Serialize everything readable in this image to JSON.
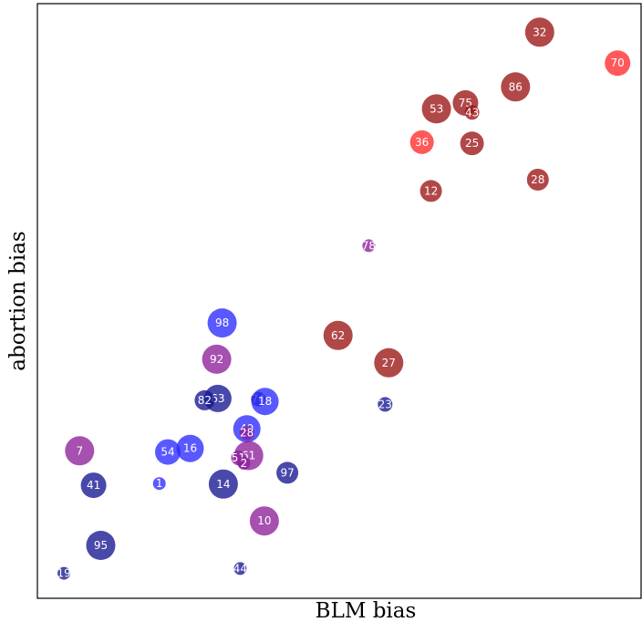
{
  "chart_data": {
    "type": "scatter",
    "title": "",
    "xlabel": "BLM bias",
    "ylabel": "abortion bias",
    "xlim": [
      0,
      100
    ],
    "ylim": [
      0,
      100
    ],
    "grid": false,
    "axis_ticks": false,
    "colors": {
      "blue": "#2a2aff",
      "navy": "#161692",
      "purple": "#8d1f9a",
      "darkred": "#9b1414",
      "red": "#ff2a2a"
    },
    "points": [
      {
        "label": "32",
        "x": 83.2,
        "y": 95.2,
        "size": 16,
        "color": "darkred"
      },
      {
        "label": "70",
        "x": 96.1,
        "y": 90.0,
        "size": 14,
        "color": "red"
      },
      {
        "label": "86",
        "x": 79.2,
        "y": 86.0,
        "size": 16,
        "color": "darkred"
      },
      {
        "label": "75",
        "x": 70.9,
        "y": 83.3,
        "size": 14,
        "color": "darkred"
      },
      {
        "label": "53",
        "x": 66.1,
        "y": 82.3,
        "size": 16,
        "color": "darkred"
      },
      {
        "label": "43",
        "x": 72.0,
        "y": 81.7,
        "size": 8,
        "color": "darkred"
      },
      {
        "label": "36",
        "x": 63.7,
        "y": 76.7,
        "size": 13,
        "color": "red"
      },
      {
        "label": "25",
        "x": 72.0,
        "y": 76.5,
        "size": 13,
        "color": "darkred"
      },
      {
        "label": "28",
        "x": 82.9,
        "y": 70.4,
        "size": 12,
        "color": "darkred"
      },
      {
        "label": "12",
        "x": 65.2,
        "y": 68.5,
        "size": 12,
        "color": "darkred"
      },
      {
        "label": "78",
        "x": 54.9,
        "y": 59.3,
        "size": 7,
        "color": "purple"
      },
      {
        "label": "98",
        "x": 30.6,
        "y": 46.3,
        "size": 16,
        "color": "blue"
      },
      {
        "label": "62",
        "x": 49.8,
        "y": 44.2,
        "size": 16,
        "color": "darkred"
      },
      {
        "label": "92",
        "x": 29.7,
        "y": 40.2,
        "size": 16,
        "color": "purple"
      },
      {
        "label": "27",
        "x": 58.2,
        "y": 39.6,
        "size": 16,
        "color": "darkred"
      },
      {
        "label": "63",
        "x": 29.9,
        "y": 33.6,
        "size": 15,
        "color": "navy"
      },
      {
        "label": "82",
        "x": 27.7,
        "y": 33.3,
        "size": 11,
        "color": "navy"
      },
      {
        "label": "74",
        "x": 36.6,
        "y": 33.5,
        "size": 8,
        "color": "navy"
      },
      {
        "label": "18",
        "x": 37.7,
        "y": 33.1,
        "size": 15,
        "color": "blue"
      },
      {
        "label": "23",
        "x": 57.6,
        "y": 32.6,
        "size": 8,
        "color": "navy"
      },
      {
        "label": "49",
        "x": 34.7,
        "y": 28.5,
        "size": 15,
        "color": "blue"
      },
      {
        "label": "28",
        "x": 34.7,
        "y": 27.8,
        "size": 8,
        "color": "purple"
      },
      {
        "label": "7",
        "x": 7.0,
        "y": 24.8,
        "size": 16,
        "color": "purple"
      },
      {
        "label": "54",
        "x": 21.6,
        "y": 24.6,
        "size": 14,
        "color": "blue"
      },
      {
        "label": "16",
        "x": 25.3,
        "y": 25.2,
        "size": 15,
        "color": "blue"
      },
      {
        "label": "61",
        "x": 35.0,
        "y": 24.0,
        "size": 16,
        "color": "purple"
      },
      {
        "label": "51",
        "x": 33.3,
        "y": 23.6,
        "size": 8,
        "color": "purple"
      },
      {
        "label": "2",
        "x": 34.2,
        "y": 22.7,
        "size": 7,
        "color": "purple"
      },
      {
        "label": "97",
        "x": 41.4,
        "y": 21.1,
        "size": 12,
        "color": "navy"
      },
      {
        "label": "41",
        "x": 9.3,
        "y": 19.0,
        "size": 14,
        "color": "navy"
      },
      {
        "label": "1",
        "x": 20.2,
        "y": 19.3,
        "size": 7,
        "color": "blue"
      },
      {
        "label": "14",
        "x": 30.8,
        "y": 19.2,
        "size": 16,
        "color": "navy"
      },
      {
        "label": "10",
        "x": 37.6,
        "y": 13.0,
        "size": 16,
        "color": "purple"
      },
      {
        "label": "95",
        "x": 10.5,
        "y": 8.9,
        "size": 16,
        "color": "navy"
      },
      {
        "label": "44",
        "x": 33.6,
        "y": 5.0,
        "size": 7,
        "color": "navy"
      },
      {
        "label": "19",
        "x": 4.4,
        "y": 4.2,
        "size": 7,
        "color": "navy"
      }
    ]
  }
}
